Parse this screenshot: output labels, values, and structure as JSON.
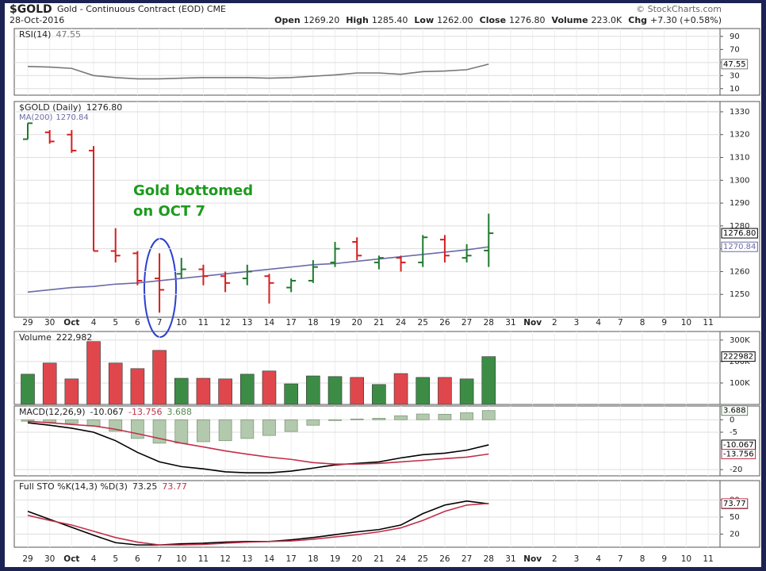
{
  "header": {
    "symbol": "$GOLD",
    "name": "Gold - Continuous Contract (EOD) CME",
    "date": "28-Oct-2016",
    "credit": "© StockCharts.com",
    "quote": [
      [
        "Open",
        "1269.20"
      ],
      [
        "High",
        "1285.40"
      ],
      [
        "Low",
        "1262.00"
      ],
      [
        "Close",
        "1276.80"
      ],
      [
        "Volume",
        "223.0K"
      ],
      [
        "Chg",
        "+7.30 (+0.58%)"
      ]
    ]
  },
  "chart_data": [
    {
      "type": "line",
      "legend": "RSI(14)",
      "ylim": [
        0,
        102
      ],
      "yticks": [
        10,
        30,
        50,
        70,
        90
      ],
      "grid": true,
      "series": [
        {
          "name": "RSI(14)",
          "color": "#777777",
          "values": [
            44,
            43,
            41,
            30,
            27,
            25,
            25,
            26,
            27,
            27,
            27,
            26,
            27,
            29,
            31,
            34,
            34,
            32,
            36,
            37,
            39,
            47.55,
            null,
            null,
            null,
            null,
            null,
            null,
            null,
            null,
            null,
            null
          ]
        }
      ]
    },
    {
      "type": "ohlc",
      "legend": "$GOLD (Daily)",
      "close_label": "1276.80",
      "up_color": "#1f7a2e",
      "down_color": "#d42020",
      "categories": [
        "29",
        "30",
        "Oct",
        "4",
        "5",
        "6",
        "7",
        "10",
        "11",
        "12",
        "13",
        "14",
        "17",
        "18",
        "19",
        "20",
        "21",
        "24",
        "25",
        "26",
        "27",
        "28",
        "31",
        "Nov",
        "2",
        "3",
        "4",
        "7",
        "8",
        "9",
        "10",
        "11"
      ],
      "open": [
        1318,
        1321,
        1320,
        1313,
        1269,
        1268,
        1257,
        1259,
        1261,
        1258,
        1257,
        1258,
        1253,
        1256,
        1264,
        1273,
        1264,
        1266,
        1264,
        1274,
        1266,
        1269.2,
        null,
        null,
        null,
        null,
        null,
        null,
        null,
        null,
        null,
        null
      ],
      "high": [
        1325,
        1322,
        1322,
        1315,
        1279,
        1269,
        1268,
        1266,
        1263,
        1260,
        1263,
        1259,
        1257,
        1265,
        1273,
        1275,
        1267,
        1267,
        1276,
        1276,
        1272,
        1285.4,
        null,
        null,
        null,
        null,
        null,
        null,
        null,
        null,
        null,
        null
      ],
      "low": [
        1318,
        1316,
        1312,
        1269,
        1264,
        1254,
        1242,
        1257,
        1254,
        1251,
        1254,
        1246,
        1251,
        1255,
        1262,
        1265,
        1261,
        1260,
        1262,
        1264,
        1264,
        1262,
        null,
        null,
        null,
        null,
        null,
        null,
        null,
        null,
        null,
        null
      ],
      "close": [
        1325,
        1317,
        1313,
        1269,
        1267,
        1256,
        1252,
        1261,
        1258,
        1255,
        1260,
        1255,
        1256,
        1262,
        1270,
        1267,
        1266,
        1264,
        1275,
        1267,
        1267,
        1276.8,
        null,
        null,
        null,
        null,
        null,
        null,
        null,
        null,
        null,
        null
      ],
      "series": [
        {
          "name": "MA(200)",
          "color": "#6a6aa8",
          "values": [
            1251,
            1252,
            1253,
            1253.5,
            1254.5,
            1255,
            1256,
            1257,
            1258,
            1259,
            1260,
            1261,
            1262,
            1263,
            1263.5,
            1264.5,
            1265.5,
            1266.5,
            1267.5,
            1268.5,
            1269.5,
            1270.84,
            null,
            null,
            null,
            null,
            null,
            null,
            null,
            null,
            null,
            null
          ]
        }
      ],
      "ylim": [
        1240,
        1334.5
      ],
      "yticks": [
        1250,
        1260,
        1270,
        1280,
        1290,
        1300,
        1310,
        1320,
        1330
      ],
      "grid": true,
      "annotation": [
        "Gold bottomed",
        "on OCT 7"
      ],
      "annotation_color": "#1e9a1e"
    },
    {
      "type": "bar",
      "legend": "Volume",
      "last_label": "222,982",
      "ylim": [
        0,
        340000
      ],
      "yticks": [
        {
          "value": 100000,
          "label": "100K"
        },
        {
          "value": 200000,
          "label": "200K"
        },
        {
          "value": 300000,
          "label": "300K"
        }
      ],
      "grid": true,
      "values": [
        141000,
        193000,
        119000,
        293000,
        193000,
        167000,
        252000,
        122000,
        122000,
        119000,
        141000,
        156000,
        96000,
        133000,
        130000,
        126000,
        93000,
        144000,
        126000,
        126000,
        119000,
        222982,
        null,
        null,
        null,
        null,
        null,
        null,
        null,
        null,
        null,
        null
      ],
      "up_color": "#3d8c46",
      "down_color": "#e0474c"
    },
    {
      "type": "line",
      "legend": "MACD(12,26,9)",
      "ylim": [
        -22.5,
        5.5
      ],
      "yticks": [
        0,
        -5,
        -20
      ],
      "grid": true,
      "series": [
        {
          "name": "MACD",
          "color": "#000000",
          "values": [
            -1.2,
            -2.2,
            -3.4,
            -5,
            -8.4,
            -13.1,
            -16.9,
            -18.8,
            -19.7,
            -20.9,
            -21.3,
            -21.3,
            -20.6,
            -19.4,
            -18.1,
            -17.5,
            -16.9,
            -15.3,
            -14,
            -13.4,
            -12.2,
            -10.067,
            null,
            null,
            null,
            null,
            null,
            null,
            null,
            null,
            null,
            null
          ]
        },
        {
          "name": "Signal",
          "color": "#c0304a",
          "values": [
            -0.6,
            -1.2,
            -1.9,
            -2.5,
            -3.8,
            -5.6,
            -7.5,
            -9.4,
            -10.9,
            -12.5,
            -13.8,
            -15,
            -15.9,
            -17.2,
            -17.8,
            -17.8,
            -17.5,
            -16.9,
            -16.3,
            -15.6,
            -15,
            -13.756,
            null,
            null,
            null,
            null,
            null,
            null,
            null,
            null,
            null,
            null
          ]
        },
        {
          "name": "Histogram",
          "color": "#b3c9ad",
          "style": "histogram",
          "values": [
            -0.6,
            -1.0,
            -1.5,
            -2.5,
            -4.6,
            -7.5,
            -9.4,
            -9.4,
            -8.8,
            -8.4,
            -7.5,
            -6.3,
            -4.7,
            -2.2,
            -0.3,
            0.3,
            0.6,
            1.6,
            2.3,
            2.2,
            2.8,
            3.688,
            null,
            null,
            null,
            null,
            null,
            null,
            null,
            null,
            null,
            null
          ]
        }
      ]
    },
    {
      "type": "line",
      "legend": "Full STO %K(14,3) %D(3)",
      "ylim": [
        -3,
        114
      ],
      "yticks": [
        20,
        50,
        80
      ],
      "grid": true,
      "categories": [
        "29",
        "30",
        "Oct",
        "4",
        "5",
        "6",
        "7",
        "10",
        "11",
        "12",
        "13",
        "14",
        "17",
        "18",
        "19",
        "20",
        "21",
        "24",
        "25",
        "26",
        "27",
        "28",
        "31",
        "Nov",
        "2",
        "3",
        "4",
        "7",
        "8",
        "9",
        "10",
        "11"
      ],
      "series": [
        {
          "name": "%K",
          "color": "#000000",
          "values": [
            60,
            46,
            32,
            18,
            5,
            1,
            1,
            3,
            4,
            6,
            7,
            7,
            10,
            14,
            19,
            24,
            28,
            36,
            56,
            71,
            78,
            73.25,
            null,
            null,
            null,
            null,
            null,
            null,
            null,
            null,
            null,
            null
          ]
        },
        {
          "name": "%D",
          "color": "#c0304a",
          "values": [
            53,
            44,
            36,
            25,
            14,
            6,
            1,
            1,
            2,
            4,
            6,
            7,
            8,
            11,
            15,
            19,
            24,
            31,
            44,
            60,
            71,
            73.77,
            null,
            null,
            null,
            null,
            null,
            null,
            null,
            null,
            null,
            null
          ]
        }
      ]
    }
  ]
}
